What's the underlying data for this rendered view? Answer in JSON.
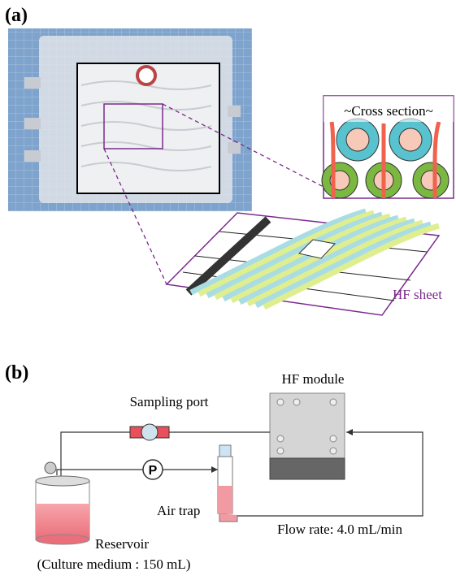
{
  "panel_a": {
    "label": "(a)",
    "cross_section_title": "~Cross section~",
    "sheet_label": "HF sheet"
  },
  "panel_b": {
    "label": "(b)",
    "module_label": "HF module",
    "sampling_port": "Sampling port",
    "pump": "P",
    "air_trap": "Air trap",
    "reservoir": "Reservoir",
    "medium": "(Culture medium : 150 mL)",
    "flow_rate": "Flow rate: 4.0 mL/min"
  }
}
